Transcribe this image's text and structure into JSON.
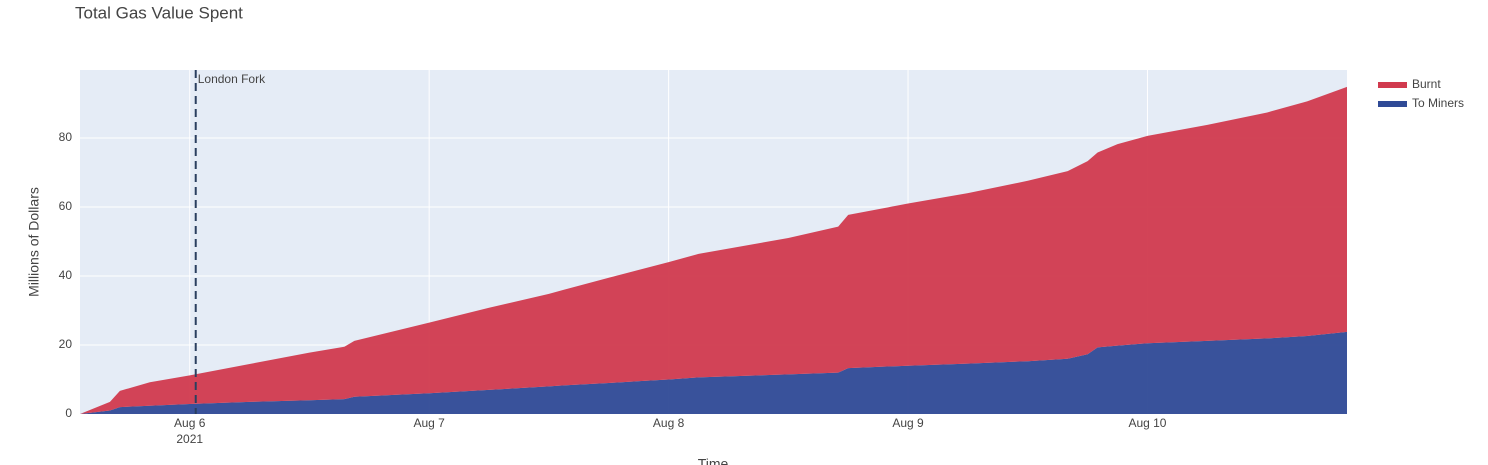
{
  "chart_data": {
    "type": "stacked_area",
    "title": "Total Gas Value Spent",
    "x_label": "Time",
    "y_label": "Millions of Dollars",
    "x": [
      "2021-08-05T13:00",
      "2021-08-05T16:00",
      "2021-08-05T17:00",
      "2021-08-05T20:00",
      "2021-08-06T00:00",
      "2021-08-06T06:00",
      "2021-08-06T12:00",
      "2021-08-06T15:30",
      "2021-08-06T16:30",
      "2021-08-07T00:00",
      "2021-08-07T06:00",
      "2021-08-07T12:00",
      "2021-08-07T13:30",
      "2021-08-07T18:00",
      "2021-08-08T00:00",
      "2021-08-08T03:00",
      "2021-08-08T12:00",
      "2021-08-08T17:00",
      "2021-08-08T18:00",
      "2021-08-09T00:00",
      "2021-08-09T06:00",
      "2021-08-09T12:00",
      "2021-08-09T16:00",
      "2021-08-09T18:00",
      "2021-08-09T19:00",
      "2021-08-09T21:00",
      "2021-08-10T00:00",
      "2021-08-10T06:00",
      "2021-08-10T12:00",
      "2021-08-10T16:00",
      "2021-08-10T20:00"
    ],
    "series": [
      {
        "name": "Burnt",
        "color": "#d13a4e",
        "values": [
          0,
          2.5,
          4.7,
          6.8,
          8.3,
          11,
          13.8,
          15.2,
          16.2,
          20.5,
          23.8,
          26.8,
          27.7,
          30.5,
          34,
          35.8,
          39.5,
          42.3,
          44.4,
          47,
          49.4,
          52.3,
          54.4,
          56,
          56.5,
          58.4,
          60.1,
          62.6,
          65.5,
          68,
          71
        ]
      },
      {
        "name": "To Miners",
        "color": "#2f4a96",
        "values": [
          0,
          1,
          2,
          2.4,
          2.9,
          3.5,
          4,
          4.3,
          5,
          6,
          7,
          8,
          8.3,
          9,
          10,
          10.6,
          11.5,
          12,
          13.3,
          14,
          14.6,
          15.3,
          16,
          17.3,
          19.3,
          19.8,
          20.5,
          21.2,
          21.9,
          22.6,
          23.8
        ]
      }
    ],
    "xlim": [
      "2021-08-05T13:00",
      "2021-08-10T20:00"
    ],
    "xticks": [
      {
        "value": "2021-08-06T00:00",
        "label": "Aug 6"
      },
      {
        "value": "2021-08-07T00:00",
        "label": "Aug 7"
      },
      {
        "value": "2021-08-08T00:00",
        "label": "Aug 8"
      },
      {
        "value": "2021-08-09T00:00",
        "label": "Aug 9"
      },
      {
        "value": "2021-08-10T00:00",
        "label": "Aug 10"
      }
    ],
    "xtick_year": "2021",
    "ylim": [
      0,
      99.7
    ],
    "yticks": [
      0,
      20,
      40,
      60,
      80
    ],
    "grid": true,
    "legend": "top-right",
    "annotations": [
      {
        "x": "2021-08-06T00:36",
        "text": "London Fork"
      }
    ]
  }
}
